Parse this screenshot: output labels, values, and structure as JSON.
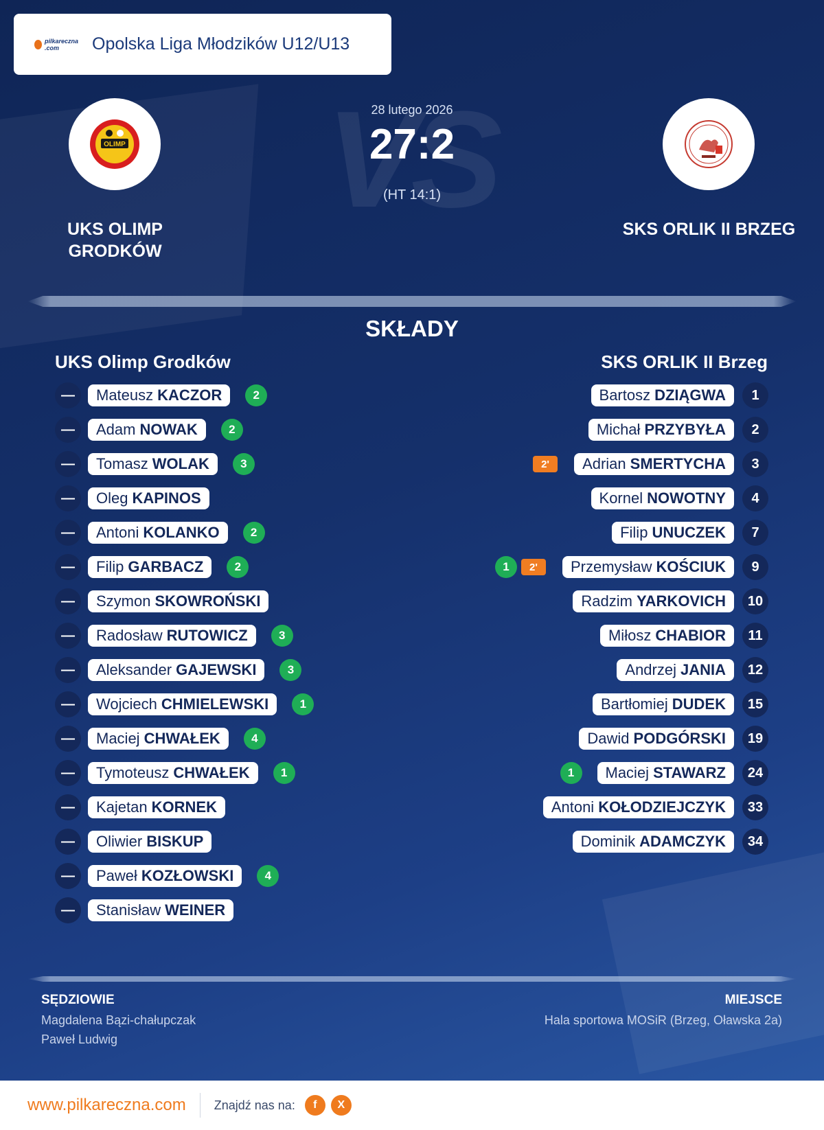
{
  "header": {
    "brand_logo_text": "pilkareczna .com",
    "league": "Opolska Liga Młodzików U12/U13"
  },
  "match": {
    "date": "28 lutego 2026",
    "score": "27:2",
    "halftime": "(HT 14:1)",
    "bg_text": "VS"
  },
  "home": {
    "name_line1": "UKS OLIMP",
    "name_line2": "GRODKÓW",
    "crest_text": "OLIMP",
    "roster_title": "UKS Olimp Grodków",
    "players": [
      {
        "num": "—",
        "first": "Mateusz",
        "last": "KACZOR",
        "goals": "2"
      },
      {
        "num": "—",
        "first": "Adam",
        "last": "NOWAK",
        "goals": "2"
      },
      {
        "num": "—",
        "first": "Tomasz",
        "last": "WOLAK",
        "goals": "3"
      },
      {
        "num": "—",
        "first": "Oleg",
        "last": "KAPINOS",
        "goals": ""
      },
      {
        "num": "—",
        "first": "Antoni",
        "last": "KOLANKO",
        "goals": "2"
      },
      {
        "num": "—",
        "first": "Filip",
        "last": "GARBACZ",
        "goals": "2"
      },
      {
        "num": "—",
        "first": "Szymon",
        "last": "SKOWROŃSKI",
        "goals": ""
      },
      {
        "num": "—",
        "first": "Radosław",
        "last": "RUTOWICZ",
        "goals": "3"
      },
      {
        "num": "—",
        "first": "Aleksander",
        "last": "GAJEWSKI",
        "goals": "3"
      },
      {
        "num": "—",
        "first": "Wojciech",
        "last": "CHMIELEWSKI",
        "goals": "1"
      },
      {
        "num": "—",
        "first": "Maciej",
        "last": "CHWAŁEK",
        "goals": "4"
      },
      {
        "num": "—",
        "first": "Tymoteusz",
        "last": "CHWAŁEK",
        "goals": "1"
      },
      {
        "num": "—",
        "first": "Kajetan",
        "last": "KORNEK",
        "goals": ""
      },
      {
        "num": "—",
        "first": "Oliwier",
        "last": "BISKUP",
        "goals": ""
      },
      {
        "num": "—",
        "first": "Paweł",
        "last": "KOZŁOWSKI",
        "goals": "4"
      },
      {
        "num": "—",
        "first": "Stanisław",
        "last": "WEINER",
        "goals": ""
      }
    ]
  },
  "away": {
    "name": "SKS ORLIK II BRZEG",
    "roster_title": "SKS ORLIK II Brzeg",
    "players": [
      {
        "num": "1",
        "first": "Bartosz",
        "last": "DZIĄGWA",
        "goals": "",
        "card": ""
      },
      {
        "num": "2",
        "first": "Michał",
        "last": "PRZYBYŁA",
        "goals": "",
        "card": ""
      },
      {
        "num": "3",
        "first": "Adrian",
        "last": "SMERTYCHA",
        "goals": "",
        "card": "2'"
      },
      {
        "num": "4",
        "first": "Kornel",
        "last": "NOWOTNY",
        "goals": "",
        "card": ""
      },
      {
        "num": "7",
        "first": "Filip",
        "last": "UNUCZEK",
        "goals": "",
        "card": ""
      },
      {
        "num": "9",
        "first": "Przemysław",
        "last": "KOŚCIUK",
        "goals": "1",
        "card": "2'"
      },
      {
        "num": "10",
        "first": "Radzim",
        "last": "YARKOVICH",
        "goals": "",
        "card": ""
      },
      {
        "num": "11",
        "first": "Miłosz",
        "last": "CHABIOR",
        "goals": "",
        "card": ""
      },
      {
        "num": "12",
        "first": "Andrzej",
        "last": "JANIA",
        "goals": "",
        "card": ""
      },
      {
        "num": "15",
        "first": "Bartłomiej",
        "last": "DUDEK",
        "goals": "",
        "card": ""
      },
      {
        "num": "19",
        "first": "Dawid",
        "last": "PODGÓRSKI",
        "goals": "",
        "card": ""
      },
      {
        "num": "24",
        "first": "Maciej",
        "last": "STAWARZ",
        "goals": "1",
        "card": ""
      },
      {
        "num": "33",
        "first": "Antoni",
        "last": "KOŁODZIEJCZYK",
        "goals": "",
        "card": ""
      },
      {
        "num": "34",
        "first": "Dominik",
        "last": "ADAMCZYK",
        "goals": "",
        "card": ""
      }
    ]
  },
  "section_title": "SKŁADY",
  "referees": {
    "label": "SĘDZIOWIE",
    "names": [
      "Magdalena Bązi-chałupczak",
      "Paweł Ludwig"
    ]
  },
  "venue": {
    "label": "MIEJSCE",
    "text": "Hala sportowa MOSiR (Brzeg, Oławska 2a)"
  },
  "footer": {
    "site": "www.pilkareczna.com",
    "find_us": "Znajdź nas na:",
    "social": [
      {
        "icon": "facebook-icon",
        "glyph": "f"
      },
      {
        "icon": "x-icon",
        "glyph": "X"
      }
    ]
  },
  "colors": {
    "accent": "#ef7b1e",
    "goal_badge": "#1fae56",
    "card_badge": "#f07d22",
    "background": "#15306b"
  }
}
